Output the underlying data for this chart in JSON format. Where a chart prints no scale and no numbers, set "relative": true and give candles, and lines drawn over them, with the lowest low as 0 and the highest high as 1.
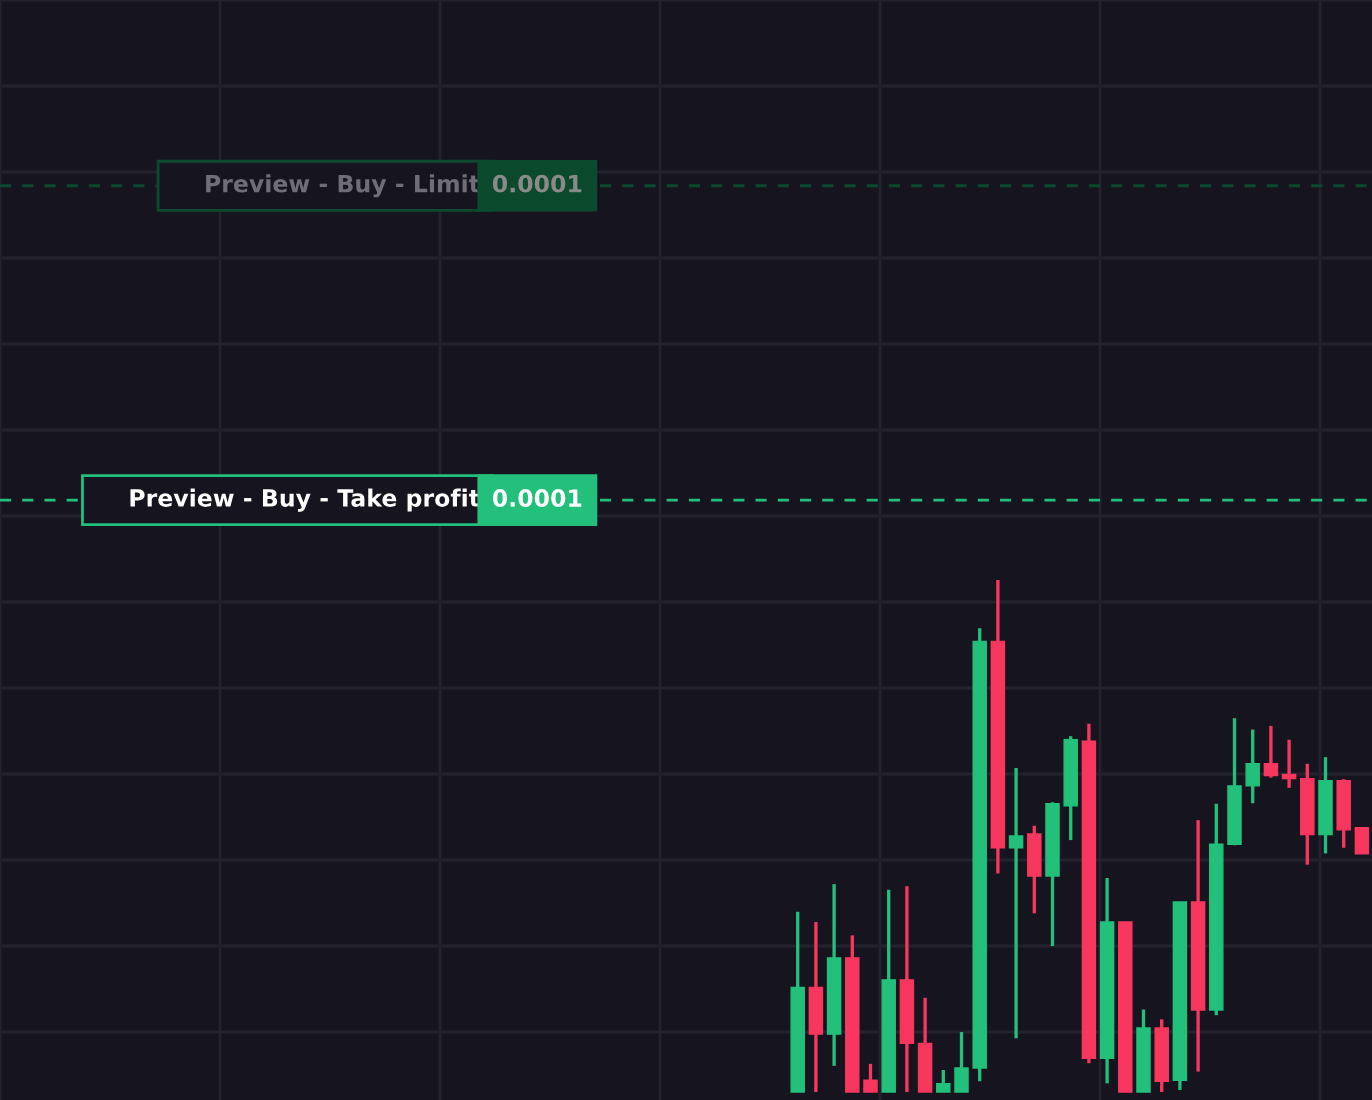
{
  "chart_data": {
    "type": "candlestick",
    "relative": true,
    "grid": true,
    "categories": [
      null,
      null,
      null,
      null,
      null,
      null,
      null,
      null,
      null,
      null,
      null,
      null,
      null,
      null,
      null,
      null,
      null,
      null,
      null,
      null,
      null,
      null,
      null,
      null,
      null,
      null,
      null,
      null,
      null,
      null,
      null,
      null
    ],
    "ohlc": [
      [
        0,
        0.352,
        0,
        0.204
      ],
      [
        0.204,
        0.332,
        0,
        0.113
      ],
      [
        0.113,
        0.406,
        0.051,
        0.262
      ],
      [
        0.262,
        0.306,
        0,
        0
      ],
      [
        0.023,
        0.055,
        0,
        0
      ],
      [
        0,
        0.395,
        0,
        0.219
      ],
      [
        0.219,
        0.402,
        0,
        0.095
      ],
      [
        0.095,
        0.184,
        0,
        0
      ],
      [
        0,
        0.043,
        0,
        0.016
      ],
      [
        0,
        0.117,
        0,
        0.047
      ],
      [
        0.047,
        0.906,
        0.021,
        0.88
      ],
      [
        0.88,
        1,
        0.427,
        0.477
      ],
      [
        0.477,
        0.633,
        0.105,
        0.5
      ],
      [
        0.504,
        0.52,
        0.349,
        0.422
      ],
      [
        0.422,
        0.566,
        0.285,
        0.563
      ],
      [
        0.559,
        0.695,
        0.492,
        0.688
      ],
      [
        0.685,
        0.719,
        0.056,
        0.066
      ],
      [
        0.066,
        0.418,
        0.017,
        0.332
      ],
      [
        0.332,
        0.332,
        0,
        0
      ],
      [
        0,
        0.161,
        0,
        0.125
      ],
      [
        0.125,
        0.142,
        0,
        0.021
      ],
      [
        0.023,
        0.371,
        0.004,
        0.371
      ],
      [
        0.371,
        0.531,
        0.04,
        0.16
      ],
      [
        0.16,
        0.563,
        0.15,
        0.484
      ],
      [
        0.484,
        0.73,
        0.482,
        0.598
      ],
      [
        0.598,
        0.708,
        0.564,
        0.641
      ],
      [
        0.641,
        0.715,
        0.614,
        0.618
      ],
      [
        0.62,
        0.688,
        0.594,
        0.612
      ],
      [
        0.612,
        0.641,
        0.444,
        0.503
      ],
      [
        0.503,
        0.654,
        0.466,
        0.608
      ],
      [
        0.608,
        0.611,
        0.477,
        0.512
      ],
      [
        0.516,
        0.516,
        0.465,
        0.465
      ]
    ],
    "colors": [
      "#22c07a",
      "#f7375e",
      "#22c07a",
      "#f7375e",
      "#f7375e",
      "#22c07a",
      "#f7375e",
      "#f7375e",
      "#22c07a",
      "#22c07a",
      "#22c07a",
      "#f7375e",
      "#22c07a",
      "#f7375e",
      "#22c07a",
      "#22c07a",
      "#f7375e",
      "#22c07a",
      "#f7375e",
      "#22c07a",
      "#f7375e",
      "#22c07a",
      "#f7375e",
      "#22c07a",
      "#22c07a",
      "#22c07a",
      "#f7375e",
      "#f7375e",
      "#f7375e",
      "#22c07a",
      "#f7375e",
      "#f7375e"
    ],
    "ref_lines": [
      {
        "axis": "y",
        "value": 1.77,
        "label": "Preview - Buy - Limit",
        "color": "#0b4a2c",
        "line_style": "dashed"
      },
      {
        "axis": "y",
        "value": 1.156,
        "label": "Preview - Buy - Take profit",
        "color": "#22c07a",
        "line_style": "dashed"
      }
    ],
    "annotations": [
      "0.0001",
      "0.0001"
    ]
  }
}
